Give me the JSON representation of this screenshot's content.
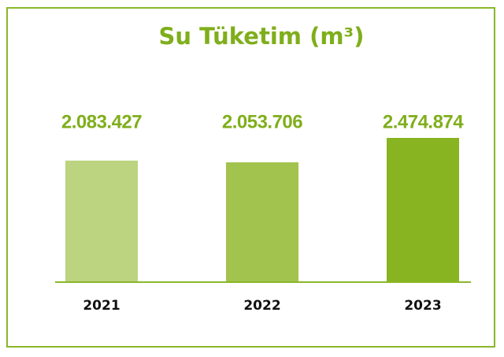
{
  "chart_data": {
    "type": "bar",
    "title": "Su Tüketim (m³)",
    "categories": [
      "2021",
      "2022",
      "2023"
    ],
    "values": [
      2083427,
      2053706,
      2474874
    ],
    "value_labels": [
      "2.083.427",
      "2.053.706",
      "2.474.874"
    ],
    "colors": [
      "#bcd37f",
      "#a2c34e",
      "#87b420"
    ]
  }
}
